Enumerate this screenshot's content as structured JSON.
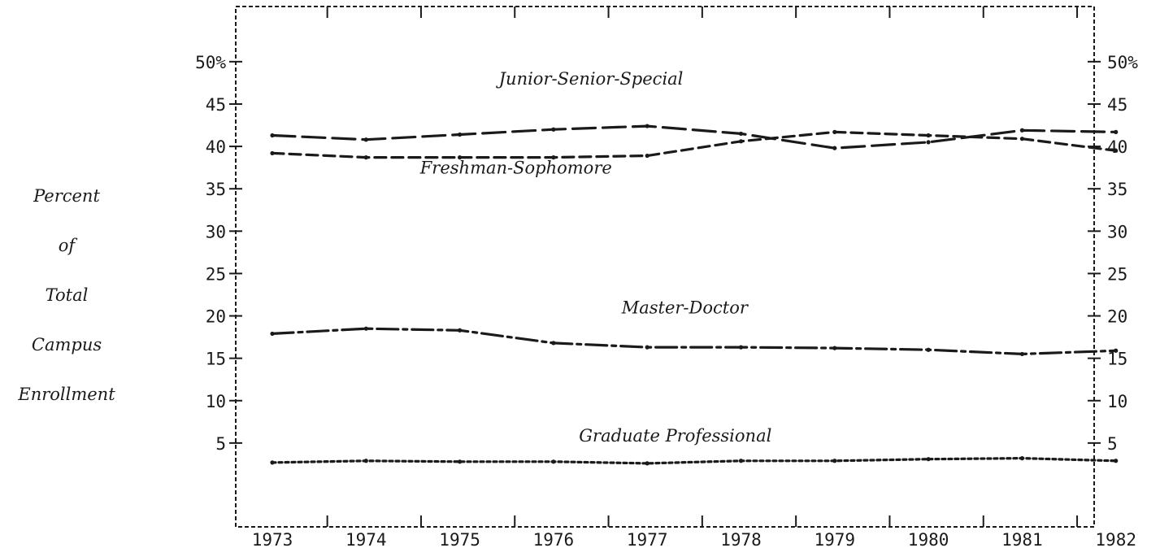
{
  "ylabel_lines": [
    "Percent",
    "of",
    "Total",
    "Campus",
    "Enrollment"
  ],
  "colors": {
    "ink": "#1a1a1a",
    "background": "#ffffff"
  },
  "chart_data": {
    "type": "line",
    "xlabel": "",
    "ylabel": "Percent of Total Campus Enrollment",
    "x": [
      "1973",
      "1974",
      "1975",
      "1976",
      "1977",
      "1978",
      "1979",
      "1980",
      "1981",
      "1982"
    ],
    "xlim": [
      1972.8,
      1982.2
    ],
    "ylim": [
      0,
      52
    ],
    "y_ticks": [
      "5",
      "10",
      "15",
      "20",
      "25",
      "30",
      "35",
      "40",
      "45",
      "50%"
    ],
    "y_tick_values": [
      5,
      10,
      15,
      20,
      25,
      30,
      35,
      40,
      45,
      50
    ],
    "grid": false,
    "legend": "inline labels",
    "series": [
      {
        "name": "Junior-Senior-Special",
        "style": "long-dash",
        "values": [
          41.3,
          40.8,
          41.4,
          42.0,
          42.4,
          41.5,
          39.8,
          40.5,
          41.9,
          41.7
        ]
      },
      {
        "name": "Freshman-Sophomore",
        "style": "short-dash",
        "values": [
          39.2,
          38.7,
          38.7,
          38.7,
          38.9,
          40.6,
          41.7,
          41.3,
          40.9,
          39.5
        ]
      },
      {
        "name": "Master-Doctor",
        "style": "dash-dot",
        "values": [
          17.9,
          18.5,
          18.3,
          16.8,
          16.3,
          16.3,
          16.2,
          16.0,
          15.5,
          15.9
        ]
      },
      {
        "name": "Graduate Professional",
        "style": "dotted",
        "values": [
          2.7,
          2.9,
          2.8,
          2.8,
          2.6,
          2.9,
          2.9,
          3.1,
          3.2,
          2.9
        ]
      }
    ],
    "annotations": [
      {
        "text": "Junior-Senior-Special",
        "x": 1976.4,
        "y": 47.3
      },
      {
        "text": "Freshman-Sophomore",
        "x": 1975.6,
        "y": 36.8
      },
      {
        "text": "Master-Doctor",
        "x": 1977.4,
        "y": 20.3
      },
      {
        "text": "Graduate Professional",
        "x": 1977.3,
        "y": 5.2
      }
    ]
  }
}
